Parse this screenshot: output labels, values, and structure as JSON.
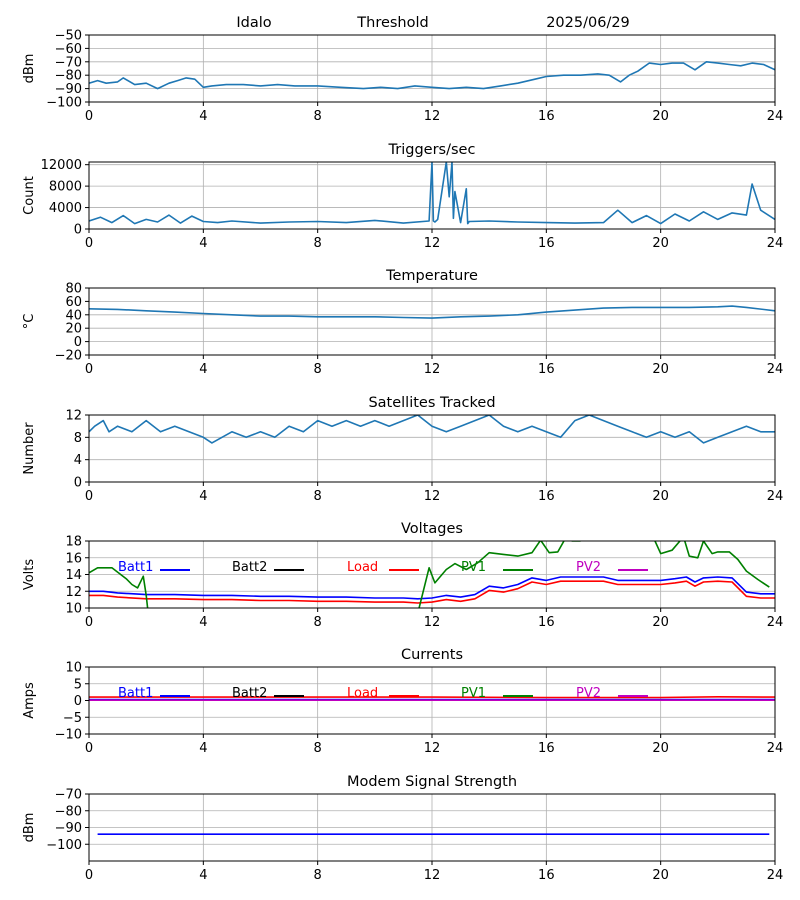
{
  "header": {
    "station": "Idalo",
    "mode": "Threshold",
    "date": "2025/06/29"
  },
  "colors": {
    "series": "#1f77b4",
    "grid": "#b0b0b0",
    "batt1": "#0000ff",
    "batt2": "#000000",
    "load": "#ff0000",
    "pv1": "#008000",
    "pv2": "#bf00bf"
  },
  "chart_data": [
    {
      "id": "threshold",
      "type": "line",
      "title": "",
      "ylabel": "dBm",
      "xlim": [
        0,
        24
      ],
      "ylim": [
        -100,
        -50
      ],
      "xticks": [
        0,
        4,
        8,
        12,
        16,
        20,
        24
      ],
      "yticks": [
        -100,
        -90,
        -80,
        -70,
        -60,
        -50
      ],
      "grid": true,
      "series": [
        {
          "x": [
            0,
            0.3,
            0.6,
            1,
            1.2,
            1.6,
            2,
            2.4,
            2.8,
            3.1,
            3.4,
            3.7,
            4,
            4.3,
            4.8,
            5.4,
            6,
            6.6,
            7.2,
            8,
            8.8,
            9.6,
            10.2,
            10.8,
            11.4,
            12,
            12.6,
            13.2,
            13.8,
            14.4,
            15,
            15.6,
            16,
            16.6,
            17.2,
            17.8,
            18.2,
            18.6,
            18.9,
            19.2,
            19.6,
            20,
            20.4,
            20.8,
            21.2,
            21.6,
            22,
            22.4,
            22.8,
            23.2,
            23.6,
            24
          ],
          "y": [
            -86,
            -84,
            -86,
            -85,
            -82,
            -87,
            -86,
            -90,
            -86,
            -84,
            -82,
            -83,
            -89,
            -88,
            -87,
            -87,
            -88,
            -87,
            -88,
            -88,
            -89,
            -90,
            -89,
            -90,
            -88,
            -89,
            -90,
            -89,
            -90,
            -88,
            -86,
            -83,
            -81,
            -80,
            -80,
            -79,
            -80,
            -85,
            -80,
            -77,
            -71,
            -72,
            -71,
            -71,
            -76,
            -70,
            -71,
            -72,
            -73,
            -71,
            -72,
            -76
          ]
        }
      ]
    },
    {
      "id": "triggers",
      "type": "line",
      "title": "Triggers/sec",
      "ylabel": "Count",
      "xlim": [
        0,
        24
      ],
      "ylim": [
        0,
        12500
      ],
      "xticks": [
        0,
        4,
        8,
        12,
        16,
        20,
        24
      ],
      "yticks": [
        0,
        4000,
        8000,
        12000
      ],
      "grid": true,
      "series": [
        {
          "x": [
            0,
            0.4,
            0.8,
            1.2,
            1.6,
            2,
            2.4,
            2.8,
            3.2,
            3.6,
            4,
            4.5,
            5,
            6,
            7,
            8,
            9,
            10,
            11,
            11.9,
            12,
            12.05,
            12.1,
            12.2,
            12.5,
            12.6,
            12.7,
            12.75,
            12.8,
            13,
            13.2,
            13.25,
            13.3,
            14,
            15,
            16,
            17,
            18,
            18.5,
            19,
            19.5,
            20,
            20.5,
            21,
            21.5,
            22,
            22.5,
            23,
            23.2,
            23.5,
            24
          ],
          "y": [
            1500,
            2200,
            1200,
            2500,
            1000,
            1800,
            1300,
            2600,
            1100,
            2400,
            1400,
            1200,
            1500,
            1100,
            1300,
            1400,
            1200,
            1600,
            1100,
            1500,
            12500,
            1500,
            1300,
            1800,
            12500,
            6000,
            12500,
            2000,
            7000,
            1200,
            7500,
            1000,
            1400,
            1500,
            1300,
            1200,
            1100,
            1200,
            3500,
            1200,
            2500,
            1000,
            2800,
            1500,
            3200,
            1800,
            3000,
            2600,
            8400,
            3500,
            1800
          ]
        }
      ]
    },
    {
      "id": "temperature",
      "type": "line",
      "title": "Temperature",
      "ylabel": "°C",
      "xlim": [
        0,
        24
      ],
      "ylim": [
        -20,
        80
      ],
      "xticks": [
        0,
        4,
        8,
        12,
        16,
        20,
        24
      ],
      "yticks": [
        -20,
        0,
        20,
        40,
        60,
        80
      ],
      "grid": true,
      "series": [
        {
          "x": [
            0,
            1,
            2,
            3,
            4,
            5,
            6,
            7,
            8,
            9,
            10,
            11,
            12,
            13,
            14,
            15,
            16,
            17,
            18,
            19,
            20,
            21,
            22,
            22.5,
            23,
            24
          ],
          "y": [
            49,
            48,
            46,
            44,
            42,
            40,
            38,
            38,
            37,
            37,
            37,
            36,
            35,
            37,
            38,
            40,
            44,
            47,
            50,
            51,
            51,
            51,
            52,
            53,
            51,
            46
          ]
        }
      ]
    },
    {
      "id": "satellites",
      "type": "line",
      "title": "Satellites Tracked",
      "ylabel": "Number",
      "xlim": [
        0,
        24
      ],
      "ylim": [
        0,
        12
      ],
      "xticks": [
        0,
        4,
        8,
        12,
        16,
        20,
        24
      ],
      "yticks": [
        0,
        4,
        8,
        12
      ],
      "grid": true,
      "series": [
        {
          "x": [
            0,
            0.2,
            0.5,
            0.7,
            1,
            1.5,
            2,
            2.5,
            3,
            3.5,
            4,
            4.3,
            5,
            5.5,
            6,
            6.5,
            7,
            7.5,
            8,
            8.5,
            9,
            9.5,
            10,
            10.5,
            11,
            11.5,
            12,
            12.5,
            13,
            13.5,
            14,
            14.5,
            15,
            15.5,
            16,
            16.5,
            17,
            17.5,
            18,
            18.5,
            19,
            19.5,
            20,
            20.5,
            21,
            21.5,
            22,
            22.5,
            23,
            23.5,
            24
          ],
          "y": [
            9,
            10,
            11,
            9,
            10,
            9,
            11,
            9,
            10,
            9,
            8,
            7,
            9,
            8,
            9,
            8,
            10,
            9,
            11,
            10,
            11,
            10,
            11,
            10,
            11,
            12,
            10,
            9,
            10,
            11,
            12,
            10,
            9,
            10,
            9,
            8,
            11,
            12,
            11,
            10,
            9,
            8,
            9,
            8,
            9,
            7,
            8,
            9,
            10,
            9,
            9
          ]
        }
      ]
    },
    {
      "id": "voltages",
      "type": "line",
      "title": "Voltages",
      "ylabel": "Volts",
      "xlim": [
        0,
        24
      ],
      "ylim": [
        10,
        18
      ],
      "xticks": [
        0,
        4,
        8,
        12,
        16,
        20,
        24
      ],
      "yticks": [
        10,
        12,
        14,
        16,
        18
      ],
      "grid": true,
      "legend": [
        "Batt1",
        "Batt2",
        "Load",
        "PV1",
        "PV2"
      ],
      "series": [
        {
          "name": "Batt1",
          "color": "#0000ff",
          "x": [
            0,
            0.5,
            1,
            2,
            3,
            4,
            5,
            6,
            7,
            8,
            9,
            10,
            11,
            11.5,
            12,
            12.5,
            13,
            13.5,
            14,
            14.5,
            15,
            15.5,
            16,
            16.5,
            17,
            18,
            18.5,
            19,
            19.5,
            20,
            20.5,
            20.9,
            21.2,
            21.5,
            22,
            22.5,
            23,
            23.5,
            24
          ],
          "y": [
            12,
            12,
            11.8,
            11.6,
            11.6,
            11.5,
            11.5,
            11.4,
            11.4,
            11.3,
            11.3,
            11.2,
            11.2,
            11.1,
            11.2,
            11.5,
            11.3,
            11.6,
            12.6,
            12.4,
            12.8,
            13.6,
            13.3,
            13.7,
            13.7,
            13.7,
            13.3,
            13.3,
            13.3,
            13.3,
            13.5,
            13.7,
            13.1,
            13.6,
            13.7,
            13.6,
            11.9,
            11.7,
            11.7
          ]
        },
        {
          "name": "Load",
          "color": "#ff0000",
          "x": [
            0,
            0.5,
            1,
            2,
            3,
            4,
            5,
            6,
            7,
            8,
            9,
            10,
            11,
            11.5,
            12,
            12.5,
            13,
            13.5,
            14,
            14.5,
            15,
            15.5,
            16,
            16.5,
            17,
            18,
            18.5,
            19,
            19.5,
            20,
            20.5,
            20.9,
            21.2,
            21.5,
            22,
            22.5,
            23,
            23.5,
            24
          ],
          "y": [
            11.5,
            11.5,
            11.3,
            11.1,
            11.1,
            11,
            11,
            10.9,
            10.9,
            10.8,
            10.8,
            10.7,
            10.7,
            10.6,
            10.7,
            11,
            10.8,
            11.1,
            12.1,
            11.9,
            12.3,
            13.1,
            12.8,
            13.2,
            13.2,
            13.2,
            12.8,
            12.8,
            12.8,
            12.8,
            13,
            13.2,
            12.6,
            13.1,
            13.2,
            13.1,
            11.4,
            11.2,
            11.2
          ]
        },
        {
          "name": "PV1",
          "color": "#008000",
          "x": [
            0,
            0.3,
            0.8,
            1.3,
            1.5,
            1.7,
            1.9,
            2.0,
            2.05
          ],
          "y": [
            14.2,
            14.8,
            14.8,
            13.5,
            12.8,
            12.4,
            13.8,
            11.5,
            10
          ]
        },
        {
          "name": "PV1",
          "color": "#008000",
          "x": [
            11.55,
            11.9,
            12.1,
            12.5,
            12.8,
            13.2,
            13.6,
            14,
            14.5,
            15,
            15.5,
            15.8,
            16.1,
            16.4,
            16.7,
            16.9,
            17.2
          ],
          "y": [
            10,
            14.8,
            13,
            14.6,
            15.3,
            14.6,
            15.4,
            16.6,
            16.4,
            16.2,
            16.6,
            18.1,
            16.6,
            16.7,
            18.5,
            18,
            18
          ]
        },
        {
          "name": "PV1",
          "color": "#008000",
          "x": [
            19.8,
            20,
            20.4,
            20.8,
            21,
            21.3,
            21.5,
            21.8,
            22,
            22.4,
            22.7,
            23,
            23.4,
            23.8
          ],
          "y": [
            18,
            16.5,
            16.9,
            18.5,
            16.2,
            16,
            18,
            16.5,
            16.7,
            16.7,
            15.8,
            14.4,
            13.4,
            12.5
          ]
        }
      ]
    },
    {
      "id": "currents",
      "type": "line",
      "title": "Currents",
      "ylabel": "Amps",
      "xlim": [
        0,
        24
      ],
      "ylim": [
        -10,
        10
      ],
      "xticks": [
        0,
        4,
        8,
        12,
        16,
        20,
        24
      ],
      "yticks": [
        -10,
        -5,
        0,
        5,
        10
      ],
      "grid": true,
      "legend": [
        "Batt1",
        "Batt2",
        "Load",
        "PV1",
        "PV2"
      ],
      "series": [
        {
          "name": "Load",
          "color": "#ff0000",
          "x": [
            0,
            4,
            8,
            12,
            16,
            20,
            22,
            24
          ],
          "y": [
            1,
            1,
            1,
            1,
            0.9,
            0.9,
            1.1,
            1
          ]
        },
        {
          "name": "Batt1",
          "color": "#0000ff",
          "x": [
            0,
            4,
            8,
            12,
            16,
            20,
            24
          ],
          "y": [
            0.3,
            0.3,
            0.3,
            0.3,
            0.3,
            0.3,
            0.3
          ]
        },
        {
          "name": "PV2",
          "color": "#bf00bf",
          "x": [
            0,
            4,
            8,
            12,
            16,
            20,
            24
          ],
          "y": [
            0.1,
            0.1,
            0.1,
            0.1,
            0.1,
            0.1,
            0.1
          ]
        }
      ]
    },
    {
      "id": "modem",
      "type": "line",
      "title": "Modem Signal Strength",
      "ylabel": "dBm",
      "xlim": [
        0,
        24
      ],
      "ylim": [
        -110,
        -70
      ],
      "xticks": [
        0,
        4,
        8,
        12,
        16,
        20,
        24
      ],
      "yticks": [
        -100,
        -90,
        -80,
        -70
      ],
      "grid": true,
      "series": [
        {
          "name": "Modem",
          "color": "#0000ff",
          "x": [
            0.3,
            23.8
          ],
          "y": [
            -94,
            -94
          ]
        }
      ]
    }
  ]
}
